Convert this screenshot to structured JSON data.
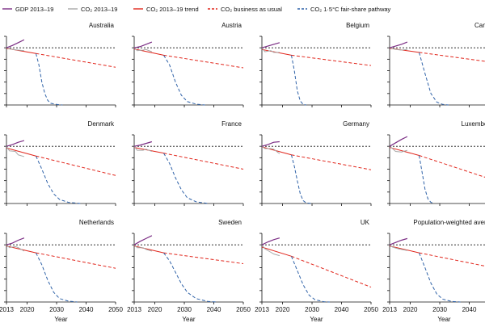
{
  "colors": {
    "gdp": "#7b2d84",
    "co2": "#a8a8a8",
    "trend": "#e1261c",
    "bau": "#e1261c",
    "fairshare": "#2f62a8",
    "baseline": "#111111",
    "axis": "#111111"
  },
  "legend": {
    "gdp": "GDP 2013–19",
    "co2": "CO₂ 2013–19",
    "trend": "CO₂ 2013–19 trend",
    "bau": "CO₂ business as usual",
    "fairshare": "CO₂ 1·5°C fair-share pathway"
  },
  "chart_data": {
    "type": "line",
    "layout": "small multiples, 3 rows × 4 columns",
    "xlabel": "Year",
    "xlim": [
      2013,
      2050
    ],
    "xticks": [
      2013,
      2020,
      2030,
      2040,
      2050
    ],
    "ylim": [
      0,
      1.2
    ],
    "baseline_y": 1.0,
    "baseline_style": "black dotted",
    "panels": [
      {
        "title": "Australia",
        "gdp": [
          [
            2013,
            1.0
          ],
          [
            2015,
            1.04
          ],
          [
            2017,
            1.09
          ],
          [
            2019,
            1.14
          ]
        ],
        "co2": [
          [
            2013,
            1.0
          ],
          [
            2015,
            0.97
          ],
          [
            2017,
            0.96
          ],
          [
            2019,
            0.95
          ]
        ],
        "trend": [
          [
            2013,
            0.99
          ],
          [
            2023,
            0.9
          ]
        ],
        "bau": [
          [
            2023,
            0.9
          ],
          [
            2050,
            0.66
          ]
        ],
        "fairshare": [
          [
            2023,
            0.9
          ],
          [
            2024,
            0.7
          ],
          [
            2025,
            0.4
          ],
          [
            2026,
            0.2
          ],
          [
            2027,
            0.08
          ],
          [
            2028,
            0.03
          ],
          [
            2030,
            0.01
          ],
          [
            2032,
            0.0
          ]
        ]
      },
      {
        "title": "Austria",
        "gdp": [
          [
            2013,
            1.0
          ],
          [
            2015,
            1.02
          ],
          [
            2017,
            1.06
          ],
          [
            2019,
            1.1
          ]
        ],
        "co2": [
          [
            2013,
            1.0
          ],
          [
            2014,
            0.95
          ],
          [
            2016,
            0.96
          ],
          [
            2017,
            0.97
          ],
          [
            2019,
            0.93
          ]
        ],
        "trend": [
          [
            2013,
            0.98
          ],
          [
            2023,
            0.87
          ]
        ],
        "bau": [
          [
            2023,
            0.87
          ],
          [
            2050,
            0.65
          ]
        ],
        "fairshare": [
          [
            2023,
            0.87
          ],
          [
            2025,
            0.7
          ],
          [
            2027,
            0.4
          ],
          [
            2029,
            0.17
          ],
          [
            2031,
            0.06
          ],
          [
            2034,
            0.015
          ],
          [
            2037,
            0.0
          ]
        ]
      },
      {
        "title": "Belgium",
        "gdp": [
          [
            2013,
            1.0
          ],
          [
            2015,
            1.03
          ],
          [
            2017,
            1.06
          ],
          [
            2019,
            1.09
          ]
        ],
        "co2": [
          [
            2013,
            1.0
          ],
          [
            2014,
            0.93
          ],
          [
            2016,
            0.95
          ],
          [
            2017,
            0.92
          ],
          [
            2019,
            0.92
          ]
        ],
        "trend": [
          [
            2013,
            0.97
          ],
          [
            2023,
            0.87
          ]
        ],
        "bau": [
          [
            2023,
            0.87
          ],
          [
            2050,
            0.69
          ]
        ],
        "fairshare": [
          [
            2023,
            0.87
          ],
          [
            2024,
            0.6
          ],
          [
            2025,
            0.25
          ],
          [
            2026,
            0.07
          ],
          [
            2027,
            0.01
          ],
          [
            2028,
            0.0
          ]
        ]
      },
      {
        "title": "Canada",
        "gdp": [
          [
            2013,
            1.0
          ],
          [
            2015,
            1.03
          ],
          [
            2017,
            1.06
          ],
          [
            2019,
            1.1
          ]
        ],
        "co2": [
          [
            2013,
            1.0
          ],
          [
            2015,
            0.97
          ],
          [
            2017,
            0.96
          ],
          [
            2019,
            0.97
          ]
        ],
        "trend": [
          [
            2013,
            0.99
          ],
          [
            2023,
            0.92
          ]
        ],
        "bau": [
          [
            2023,
            0.92
          ],
          [
            2050,
            0.73
          ]
        ],
        "fairshare": [
          [
            2023,
            0.92
          ],
          [
            2025,
            0.55
          ],
          [
            2027,
            0.2
          ],
          [
            2029,
            0.05
          ],
          [
            2031,
            0.01
          ],
          [
            2033,
            0.0
          ]
        ]
      },
      {
        "title": "Denmark",
        "gdp": [
          [
            2013,
            1.0
          ],
          [
            2015,
            1.03
          ],
          [
            2017,
            1.07
          ],
          [
            2019,
            1.1
          ]
        ],
        "co2": [
          [
            2013,
            1.0
          ],
          [
            2014,
            0.92
          ],
          [
            2016,
            0.91
          ],
          [
            2017,
            0.85
          ],
          [
            2019,
            0.82
          ]
        ],
        "trend": [
          [
            2013,
            0.97
          ],
          [
            2023,
            0.83
          ]
        ],
        "bau": [
          [
            2023,
            0.83
          ],
          [
            2050,
            0.49
          ]
        ],
        "fairshare": [
          [
            2023,
            0.83
          ],
          [
            2025,
            0.6
          ],
          [
            2027,
            0.35
          ],
          [
            2029,
            0.17
          ],
          [
            2031,
            0.07
          ],
          [
            2034,
            0.02
          ],
          [
            2038,
            0.0
          ]
        ]
      },
      {
        "title": "France",
        "gdp": [
          [
            2013,
            1.0
          ],
          [
            2015,
            1.02
          ],
          [
            2017,
            1.05
          ],
          [
            2019,
            1.08
          ]
        ],
        "co2": [
          [
            2013,
            1.0
          ],
          [
            2014,
            0.93
          ],
          [
            2016,
            0.93
          ],
          [
            2017,
            0.95
          ],
          [
            2019,
            0.91
          ]
        ],
        "trend": [
          [
            2013,
            0.98
          ],
          [
            2023,
            0.88
          ]
        ],
        "bau": [
          [
            2023,
            0.88
          ],
          [
            2050,
            0.6
          ]
        ],
        "fairshare": [
          [
            2023,
            0.88
          ],
          [
            2025,
            0.7
          ],
          [
            2027,
            0.45
          ],
          [
            2029,
            0.24
          ],
          [
            2031,
            0.1
          ],
          [
            2034,
            0.03
          ],
          [
            2038,
            0.0
          ]
        ]
      },
      {
        "title": "Germany",
        "gdp": [
          [
            2013,
            1.0
          ],
          [
            2015,
            1.03
          ],
          [
            2017,
            1.07
          ],
          [
            2019,
            1.08
          ]
        ],
        "co2": [
          [
            2013,
            1.0
          ],
          [
            2014,
            0.96
          ],
          [
            2016,
            0.96
          ],
          [
            2017,
            0.95
          ],
          [
            2019,
            0.87
          ]
        ],
        "trend": [
          [
            2013,
            0.99
          ],
          [
            2023,
            0.85
          ]
        ],
        "bau": [
          [
            2023,
            0.85
          ],
          [
            2050,
            0.59
          ]
        ],
        "fairshare": [
          [
            2023,
            0.85
          ],
          [
            2024,
            0.65
          ],
          [
            2025,
            0.4
          ],
          [
            2026,
            0.17
          ],
          [
            2027,
            0.05
          ],
          [
            2028,
            0.01
          ],
          [
            2030,
            0.0
          ]
        ]
      },
      {
        "title": "Luxembourg",
        "gdp": [
          [
            2013,
            1.0
          ],
          [
            2015,
            1.06
          ],
          [
            2017,
            1.12
          ],
          [
            2019,
            1.17
          ]
        ],
        "co2": [
          [
            2013,
            1.0
          ],
          [
            2014,
            0.96
          ],
          [
            2015,
            0.91
          ],
          [
            2017,
            0.9
          ],
          [
            2019,
            0.93
          ]
        ],
        "trend": [
          [
            2013,
            0.98
          ],
          [
            2023,
            0.84
          ]
        ],
        "bau": [
          [
            2023,
            0.84
          ],
          [
            2050,
            0.38
          ]
        ],
        "fairshare": [
          [
            2023,
            0.84
          ],
          [
            2024,
            0.55
          ],
          [
            2025,
            0.25
          ],
          [
            2026,
            0.08
          ],
          [
            2027,
            0.02
          ],
          [
            2028,
            0.0
          ]
        ]
      },
      {
        "title": "Netherlands",
        "gdp": [
          [
            2013,
            1.0
          ],
          [
            2015,
            1.03
          ],
          [
            2017,
            1.08
          ],
          [
            2019,
            1.12
          ]
        ],
        "co2": [
          [
            2013,
            1.0
          ],
          [
            2014,
            0.95
          ],
          [
            2016,
            0.97
          ],
          [
            2017,
            0.95
          ],
          [
            2019,
            0.89
          ]
        ],
        "trend": [
          [
            2013,
            0.98
          ],
          [
            2023,
            0.86
          ]
        ],
        "bau": [
          [
            2023,
            0.86
          ],
          [
            2050,
            0.59
          ]
        ],
        "fairshare": [
          [
            2023,
            0.86
          ],
          [
            2025,
            0.65
          ],
          [
            2027,
            0.38
          ],
          [
            2029,
            0.17
          ],
          [
            2031,
            0.06
          ],
          [
            2034,
            0.015
          ],
          [
            2037,
            0.0
          ]
        ]
      },
      {
        "title": "Sweden",
        "gdp": [
          [
            2013,
            1.0
          ],
          [
            2015,
            1.06
          ],
          [
            2017,
            1.11
          ],
          [
            2019,
            1.16
          ]
        ],
        "co2": [
          [
            2013,
            1.0
          ],
          [
            2014,
            0.95
          ],
          [
            2016,
            0.95
          ],
          [
            2017,
            0.92
          ],
          [
            2019,
            0.89
          ]
        ],
        "trend": [
          [
            2013,
            0.98
          ],
          [
            2023,
            0.86
          ]
        ],
        "bau": [
          [
            2023,
            0.86
          ],
          [
            2050,
            0.67
          ]
        ],
        "fairshare": [
          [
            2023,
            0.86
          ],
          [
            2025,
            0.72
          ],
          [
            2027,
            0.52
          ],
          [
            2029,
            0.32
          ],
          [
            2031,
            0.17
          ],
          [
            2034,
            0.06
          ],
          [
            2038,
            0.01
          ],
          [
            2041,
            0.0
          ]
        ]
      },
      {
        "title": "UK",
        "gdp": [
          [
            2013,
            1.0
          ],
          [
            2015,
            1.05
          ],
          [
            2017,
            1.09
          ],
          [
            2019,
            1.12
          ]
        ],
        "co2": [
          [
            2013,
            1.0
          ],
          [
            2014,
            0.93
          ],
          [
            2016,
            0.87
          ],
          [
            2017,
            0.84
          ],
          [
            2019,
            0.81
          ]
        ],
        "trend": [
          [
            2013,
            0.96
          ],
          [
            2023,
            0.8
          ]
        ],
        "bau": [
          [
            2023,
            0.8
          ],
          [
            2050,
            0.26
          ]
        ],
        "fairshare": [
          [
            2023,
            0.8
          ],
          [
            2025,
            0.55
          ],
          [
            2027,
            0.3
          ],
          [
            2029,
            0.12
          ],
          [
            2031,
            0.04
          ],
          [
            2034,
            0.005
          ],
          [
            2036,
            0.0
          ]
        ]
      },
      {
        "title": "Population-weighted average",
        "gdp": [
          [
            2013,
            1.0
          ],
          [
            2015,
            1.04
          ],
          [
            2017,
            1.08
          ],
          [
            2019,
            1.11
          ]
        ],
        "co2": [
          [
            2013,
            1.0
          ],
          [
            2014,
            0.96
          ],
          [
            2016,
            0.93
          ],
          [
            2017,
            0.92
          ],
          [
            2019,
            0.9
          ]
        ],
        "trend": [
          [
            2013,
            0.98
          ],
          [
            2023,
            0.86
          ]
        ],
        "bau": [
          [
            2023,
            0.86
          ],
          [
            2050,
            0.58
          ]
        ],
        "fairshare": [
          [
            2023,
            0.86
          ],
          [
            2025,
            0.6
          ],
          [
            2027,
            0.33
          ],
          [
            2029,
            0.14
          ],
          [
            2031,
            0.05
          ],
          [
            2034,
            0.01
          ],
          [
            2037,
            0.0
          ]
        ]
      }
    ]
  }
}
